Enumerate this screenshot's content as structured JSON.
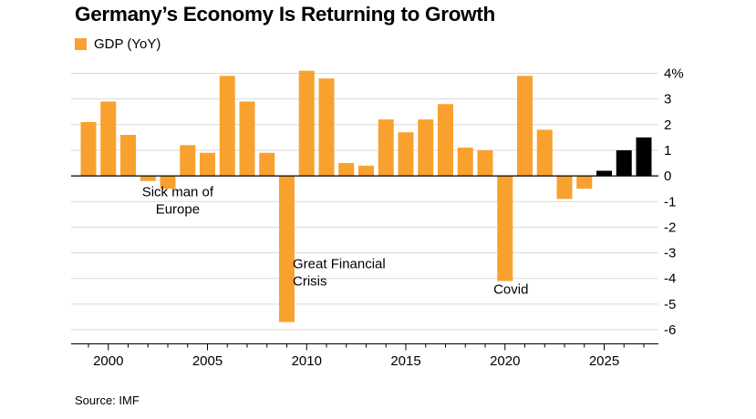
{
  "title": "Germany’s Economy Is Returning to Growth",
  "legend": {
    "label": "GDP (YoY)",
    "color": "#F9A12E"
  },
  "source": "Source: IMF",
  "colors": {
    "actual": "#F9A12E",
    "forecast": "#000000",
    "grid": "#d9d9d9",
    "axis": "#000000"
  },
  "chart_data": {
    "type": "bar",
    "x": [
      1999,
      2000,
      2001,
      2002,
      2003,
      2004,
      2005,
      2006,
      2007,
      2008,
      2009,
      2010,
      2011,
      2012,
      2013,
      2014,
      2015,
      2016,
      2017,
      2018,
      2019,
      2020,
      2021,
      2022,
      2023,
      2024,
      2025,
      2026,
      2027
    ],
    "values": [
      2.1,
      2.9,
      1.6,
      -0.2,
      -0.5,
      1.2,
      0.9,
      3.9,
      2.9,
      0.9,
      -5.7,
      4.1,
      3.8,
      0.5,
      0.4,
      2.2,
      1.7,
      2.2,
      2.8,
      1.1,
      1.0,
      -4.1,
      3.9,
      1.8,
      -0.9,
      -0.5,
      0.2,
      1.0,
      1.5
    ],
    "bar_colors": [
      "actual",
      "actual",
      "actual",
      "actual",
      "actual",
      "actual",
      "actual",
      "actual",
      "actual",
      "actual",
      "actual",
      "actual",
      "actual",
      "actual",
      "actual",
      "actual",
      "actual",
      "actual",
      "actual",
      "actual",
      "actual",
      "actual",
      "actual",
      "actual",
      "actual",
      "actual",
      "forecast",
      "forecast",
      "forecast"
    ],
    "ylim": [
      -6,
      4
    ],
    "yticks": [
      4,
      3,
      2,
      1,
      0,
      -1,
      -2,
      -3,
      -4,
      -5,
      -6
    ],
    "ytick_labels": [
      "4%",
      "3",
      "2",
      "1",
      "0",
      "-1",
      "-2",
      "-3",
      "-4",
      "-5",
      "-6"
    ],
    "xtick_labels": [
      {
        "year": 2000,
        "label": "2000"
      },
      {
        "year": 2005,
        "label": "2005"
      },
      {
        "year": 2010,
        "label": "2010"
      },
      {
        "year": 2015,
        "label": "2015"
      },
      {
        "year": 2020,
        "label": "2020"
      },
      {
        "year": 2025,
        "label": "2025"
      }
    ],
    "annotations": [
      {
        "name": "annotation-sick-man",
        "lines": [
          "Sick man of",
          "Europe"
        ],
        "year": 2003.5,
        "value": -0.8,
        "anchor": "middle"
      },
      {
        "name": "annotation-financial-crisis",
        "lines": [
          "Great Financial",
          "Crisis"
        ],
        "year": 2009.3,
        "value": -3.6,
        "anchor": "start"
      },
      {
        "name": "annotation-covid",
        "lines": [
          "Covid"
        ],
        "year": 2020.3,
        "value": -4.6,
        "anchor": "middle"
      }
    ],
    "grid": true,
    "xlabel": "",
    "ylabel": ""
  }
}
